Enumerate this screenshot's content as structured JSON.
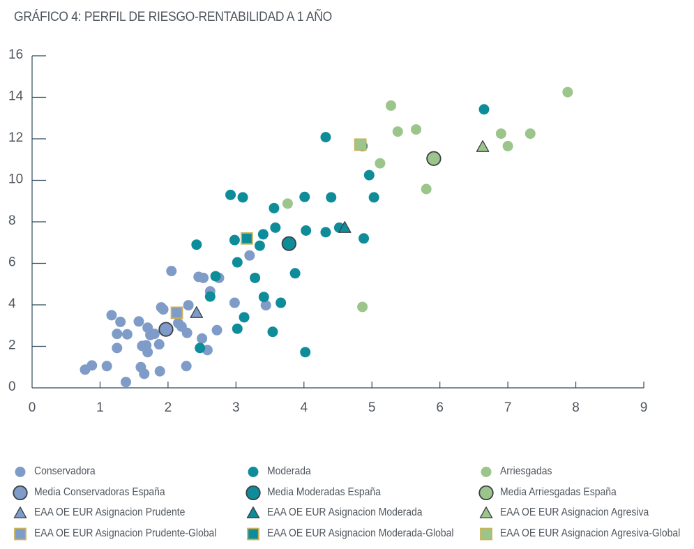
{
  "chart_data": {
    "type": "scatter",
    "title": "GRÁFICO 4: PERFIL DE RIESGO-RENTABILIDAD A 1 AÑO",
    "xlabel": "",
    "ylabel": "",
    "xlim": [
      0,
      9
    ],
    "ylim": [
      0,
      16
    ],
    "x_ticks": [
      "0",
      "1",
      "2",
      "3",
      "4",
      "5",
      "6",
      "7",
      "8",
      "9"
    ],
    "y_ticks": [
      "0",
      "2",
      "4",
      "6",
      "8",
      "10",
      "12",
      "14",
      "16"
    ],
    "grid": false,
    "colors": {
      "conservadora": "#7f9bc7",
      "moderada": "#0e8c9a",
      "arriesgada": "#9cc58c",
      "marker_edge": "#3a3f44",
      "square_edge": "#c8b25a"
    },
    "series": [
      {
        "name": "Conservadora",
        "marker": "circle",
        "color": "#7f9bc7",
        "points": [
          [
            0.78,
            0.88
          ],
          [
            0.88,
            1.08
          ],
          [
            1.1,
            1.05
          ],
          [
            1.17,
            3.5
          ],
          [
            1.25,
            1.92
          ],
          [
            1.25,
            2.6
          ],
          [
            1.3,
            3.18
          ],
          [
            1.38,
            0.28
          ],
          [
            1.4,
            2.58
          ],
          [
            1.57,
            3.2
          ],
          [
            1.6,
            1.0
          ],
          [
            1.62,
            2.02
          ],
          [
            1.65,
            0.68
          ],
          [
            1.68,
            2.05
          ],
          [
            1.7,
            1.72
          ],
          [
            1.7,
            2.9
          ],
          [
            1.74,
            2.55
          ],
          [
            1.8,
            2.6
          ],
          [
            1.87,
            2.1
          ],
          [
            1.88,
            0.8
          ],
          [
            1.9,
            3.88
          ],
          [
            1.93,
            3.78
          ],
          [
            2.05,
            5.63
          ],
          [
            2.15,
            3.12
          ],
          [
            2.2,
            2.95
          ],
          [
            2.27,
            1.05
          ],
          [
            2.28,
            2.65
          ],
          [
            2.3,
            3.98
          ],
          [
            2.45,
            5.35
          ],
          [
            2.5,
            2.38
          ],
          [
            2.52,
            5.3
          ],
          [
            2.58,
            1.82
          ],
          [
            2.62,
            4.65
          ],
          [
            2.72,
            2.78
          ],
          [
            2.75,
            5.3
          ],
          [
            2.98,
            4.1
          ],
          [
            3.2,
            6.38
          ],
          [
            3.44,
            3.98
          ]
        ]
      },
      {
        "name": "Moderada",
        "marker": "circle",
        "color": "#0e8c9a",
        "points": [
          [
            2.42,
            6.9
          ],
          [
            2.47,
            1.92
          ],
          [
            2.62,
            4.4
          ],
          [
            2.7,
            5.38
          ],
          [
            2.92,
            9.3
          ],
          [
            2.98,
            7.12
          ],
          [
            3.02,
            6.05
          ],
          [
            3.02,
            2.85
          ],
          [
            3.1,
            9.18
          ],
          [
            3.12,
            3.4
          ],
          [
            3.28,
            5.3
          ],
          [
            3.35,
            6.85
          ],
          [
            3.4,
            7.4
          ],
          [
            3.41,
            4.38
          ],
          [
            3.54,
            2.7
          ],
          [
            3.56,
            8.66
          ],
          [
            3.58,
            7.72
          ],
          [
            3.66,
            4.1
          ],
          [
            3.87,
            5.52
          ],
          [
            4.01,
            9.2
          ],
          [
            4.02,
            1.72
          ],
          [
            4.03,
            7.58
          ],
          [
            4.32,
            12.08
          ],
          [
            4.32,
            7.5
          ],
          [
            4.4,
            9.18
          ],
          [
            4.52,
            7.72
          ],
          [
            4.86,
            11.65
          ],
          [
            4.88,
            7.2
          ],
          [
            4.96,
            10.25
          ],
          [
            5.03,
            9.18
          ],
          [
            6.65,
            13.42
          ]
        ]
      },
      {
        "name": "Arriesgadas",
        "marker": "circle",
        "color": "#9cc58c",
        "points": [
          [
            3.76,
            8.88
          ],
          [
            4.86,
            3.9
          ],
          [
            5.12,
            10.82
          ],
          [
            5.28,
            13.6
          ],
          [
            5.38,
            12.35
          ],
          [
            5.65,
            12.45
          ],
          [
            5.8,
            9.58
          ],
          [
            6.9,
            12.25
          ],
          [
            7.0,
            11.65
          ],
          [
            7.33,
            12.25
          ],
          [
            7.88,
            14.25
          ]
        ]
      },
      {
        "name": "Media Conservadoras España",
        "marker": "circle-edge",
        "color": "#7f9bc7",
        "points": [
          [
            1.97,
            2.82
          ]
        ]
      },
      {
        "name": "Media Moderadas España",
        "marker": "circle-edge",
        "color": "#0e8c9a",
        "points": [
          [
            3.78,
            6.95
          ]
        ]
      },
      {
        "name": "Media Arriesgadas España",
        "marker": "circle-edge",
        "color": "#9cc58c",
        "points": [
          [
            5.91,
            11.05
          ]
        ]
      },
      {
        "name": "EAA OE EUR Asignacion Prudente",
        "marker": "triangle",
        "color": "#7f9bc7",
        "points": [
          [
            2.42,
            3.62
          ]
        ]
      },
      {
        "name": "EAA OE EUR Asignacion Moderada",
        "marker": "triangle",
        "color": "#0e8c9a",
        "points": [
          [
            4.6,
            7.72
          ]
        ]
      },
      {
        "name": "EAA OE EUR Asignacion Agresiva",
        "marker": "triangle",
        "color": "#9cc58c",
        "points": [
          [
            6.63,
            11.62
          ]
        ]
      },
      {
        "name": "EAA OE EUR Asignacion Prudente-Global",
        "marker": "square",
        "color": "#7f9bc7",
        "points": [
          [
            2.13,
            3.62
          ]
        ]
      },
      {
        "name": "EAA OE EUR Asignacion Moderada-Global",
        "marker": "square",
        "color": "#0e8c9a",
        "points": [
          [
            3.16,
            7.2
          ]
        ]
      },
      {
        "name": "EAA OE EUR Asignacion Agresiva-Global",
        "marker": "square",
        "color": "#9cc58c",
        "points": [
          [
            4.83,
            11.72
          ]
        ]
      }
    ]
  },
  "legend": {
    "placement": "bottom",
    "items": [
      {
        "label": "Conservadora",
        "marker": "circle",
        "color": "#7f9bc7"
      },
      {
        "label": "Moderada",
        "marker": "circle",
        "color": "#0e8c9a"
      },
      {
        "label": "Arriesgadas",
        "marker": "circle",
        "color": "#9cc58c"
      },
      {
        "label": "Media Conservadoras España",
        "marker": "circle-edge",
        "color": "#7f9bc7"
      },
      {
        "label": "Media Moderadas España",
        "marker": "circle-edge",
        "color": "#0e8c9a"
      },
      {
        "label": "Media Arriesgadas España",
        "marker": "circle-edge",
        "color": "#9cc58c"
      },
      {
        "label": "EAA OE EUR Asignacion Prudente",
        "marker": "triangle",
        "color": "#7f9bc7"
      },
      {
        "label": "EAA OE EUR Asignacion Moderada",
        "marker": "triangle",
        "color": "#0e8c9a"
      },
      {
        "label": "EAA OE EUR Asignacion Agresiva",
        "marker": "triangle",
        "color": "#9cc58c"
      },
      {
        "label": "EAA OE EUR Asignacion Prudente-Global",
        "marker": "square",
        "color": "#7f9bc7"
      },
      {
        "label": "EAA OE EUR Asignacion Moderada-Global",
        "marker": "square",
        "color": "#0e8c9a"
      },
      {
        "label": "EAA OE EUR Asignacion Agresiva-Global",
        "marker": "square",
        "color": "#9cc58c"
      }
    ]
  }
}
